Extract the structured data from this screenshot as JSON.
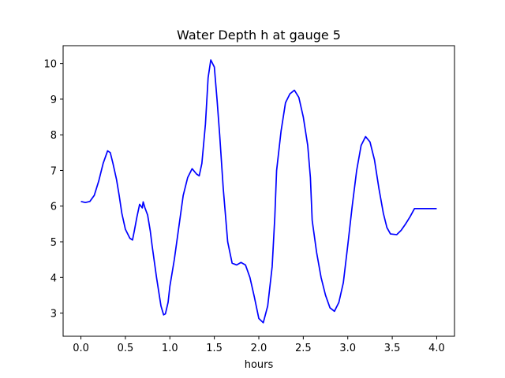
{
  "chart_data": {
    "type": "line",
    "title": "Water Depth h at gauge 5",
    "xlabel": "hours",
    "ylabel": "",
    "xlim": [
      -0.2,
      4.2
    ],
    "ylim": [
      2.35,
      10.5
    ],
    "grid": false,
    "xticks": [
      0.0,
      0.5,
      1.0,
      1.5,
      2.0,
      2.5,
      3.0,
      3.5,
      4.0
    ],
    "xtick_labels": [
      "0.0",
      "0.5",
      "1.0",
      "1.5",
      "2.0",
      "2.5",
      "3.0",
      "3.5",
      "4.0"
    ],
    "yticks": [
      3,
      4,
      5,
      6,
      7,
      8,
      9,
      10
    ],
    "ytick_labels": [
      "3",
      "4",
      "5",
      "6",
      "7",
      "8",
      "9",
      "10"
    ],
    "series": [
      {
        "color": "#0000ff",
        "x": [
          0.0,
          0.05,
          0.1,
          0.15,
          0.2,
          0.25,
          0.3,
          0.33,
          0.36,
          0.4,
          0.43,
          0.46,
          0.5,
          0.55,
          0.58,
          0.6,
          0.63,
          0.66,
          0.69,
          0.7,
          0.72,
          0.75,
          0.78,
          0.8,
          0.85,
          0.9,
          0.93,
          0.95,
          0.98,
          1.0,
          1.05,
          1.1,
          1.15,
          1.2,
          1.25,
          1.3,
          1.33,
          1.36,
          1.4,
          1.43,
          1.46,
          1.5,
          1.53,
          1.56,
          1.6,
          1.65,
          1.7,
          1.75,
          1.8,
          1.85,
          1.9,
          1.95,
          2.0,
          2.05,
          2.1,
          2.15,
          2.18,
          2.2,
          2.25,
          2.3,
          2.35,
          2.4,
          2.45,
          2.5,
          2.55,
          2.58,
          2.6,
          2.65,
          2.7,
          2.75,
          2.8,
          2.85,
          2.9,
          2.95,
          3.0,
          3.05,
          3.1,
          3.15,
          3.2,
          3.25,
          3.3,
          3.35,
          3.4,
          3.44,
          3.48,
          3.55,
          3.6,
          3.65,
          3.7,
          3.75,
          3.8,
          3.85,
          3.9,
          3.95,
          4.0
        ],
        "y": [
          6.13,
          6.1,
          6.13,
          6.3,
          6.7,
          7.2,
          7.55,
          7.5,
          7.2,
          6.75,
          6.3,
          5.8,
          5.35,
          5.1,
          5.05,
          5.3,
          5.7,
          6.05,
          5.95,
          6.12,
          5.95,
          5.75,
          5.3,
          4.9,
          4.0,
          3.2,
          2.95,
          2.98,
          3.3,
          3.75,
          4.5,
          5.4,
          6.3,
          6.8,
          7.05,
          6.9,
          6.85,
          7.2,
          8.3,
          9.6,
          10.1,
          9.9,
          9.0,
          8.0,
          6.5,
          5.0,
          4.4,
          4.35,
          4.42,
          4.35,
          4.0,
          3.45,
          2.85,
          2.73,
          3.2,
          4.3,
          5.7,
          7.0,
          8.1,
          8.9,
          9.15,
          9.25,
          9.05,
          8.5,
          7.7,
          6.8,
          5.6,
          4.7,
          4.0,
          3.5,
          3.15,
          3.05,
          3.3,
          3.85,
          4.9,
          6.0,
          7.0,
          7.7,
          7.95,
          7.8,
          7.3,
          6.5,
          5.8,
          5.4,
          5.22,
          5.2,
          5.32,
          5.5,
          5.7,
          5.93,
          5.93,
          5.93,
          5.93,
          5.93,
          5.93
        ]
      }
    ]
  }
}
